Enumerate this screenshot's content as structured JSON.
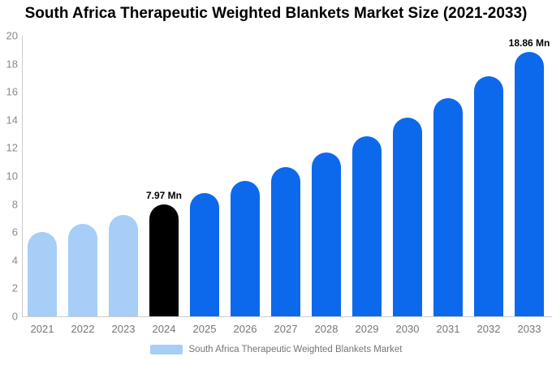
{
  "title": "South Africa Therapeutic Weighted Blankets Market Size (2021-2033)",
  "legend": {
    "label": "South Africa Therapeutic Weighted Blankets Market",
    "swatch_color": "#a6cef7"
  },
  "colors": {
    "historical_bar": "#a6cef7",
    "base_year_bar": "#000000",
    "forecast_bar": "#0d69ec",
    "axis_line": "#cccccc",
    "y_tick_text": "#8a8a8a",
    "x_tick_text": "#757575",
    "point_label_text": "#000000",
    "legend_text": "#757575",
    "background": "#ffffff"
  },
  "chart_data": {
    "type": "bar",
    "title": "South Africa Therapeutic Weighted Blankets Market Size (2021-2033)",
    "categories": [
      "2021",
      "2022",
      "2023",
      "2024",
      "2025",
      "2026",
      "2027",
      "2028",
      "2029",
      "2030",
      "2031",
      "2032",
      "2033"
    ],
    "values": [
      5.99,
      6.59,
      7.25,
      7.97,
      8.77,
      9.65,
      10.62,
      11.68,
      12.85,
      14.14,
      15.56,
      17.12,
      18.86
    ],
    "bar_colors": [
      "#a6cef7",
      "#a6cef7",
      "#a6cef7",
      "#000000",
      "#0d69ec",
      "#0d69ec",
      "#0d69ec",
      "#0d69ec",
      "#0d69ec",
      "#0d69ec",
      "#0d69ec",
      "#0d69ec",
      "#0d69ec"
    ],
    "point_labels": [
      "",
      "",
      "",
      "7.97 Mn",
      "",
      "",
      "",
      "",
      "",
      "",
      "",
      "",
      "18.86 Mn"
    ],
    "unit": "Mn",
    "xlabel": "",
    "ylabel": "",
    "ylim": [
      0,
      20
    ],
    "y_ticks": [
      0,
      2,
      4,
      6,
      8,
      10,
      12,
      14,
      16,
      18,
      20
    ],
    "grid": false,
    "legend_entries": [
      "South Africa Therapeutic Weighted Blankets Market"
    ],
    "legend_position": "bottom"
  }
}
